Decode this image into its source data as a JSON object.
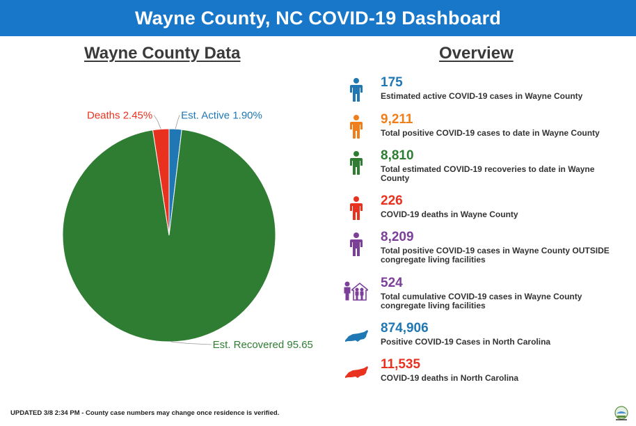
{
  "header": {
    "title": "Wayne County, NC COVID-19 Dashboard"
  },
  "left_section": {
    "title": "Wayne County Data"
  },
  "right_section": {
    "title": "Overview"
  },
  "chart_data": {
    "type": "pie",
    "title": "Wayne County Data",
    "slices": [
      {
        "label": "Est. Active",
        "value": 1.9,
        "text": "Est. Active 1.90%",
        "color": "#1f77b4"
      },
      {
        "label": "Est. Recovered",
        "value": 95.65,
        "text": "Est. Recovered 95.65",
        "color": "#2e7d32"
      },
      {
        "label": "Deaths",
        "value": 2.45,
        "text": "Deaths 2.45%",
        "color": "#e8321f"
      }
    ]
  },
  "stats": [
    {
      "value": "175",
      "label": "Estimated active COVID-19 cases in Wayne County",
      "color": "#1f77b4",
      "icon": "person-icon"
    },
    {
      "value": "9,211",
      "label": "Total positive COVID-19 cases to date in Wayne County",
      "color": "#f07f1b",
      "icon": "person-icon"
    },
    {
      "value": "8,810",
      "label": "Total estimated COVID-19 recoveries to date in Wayne County",
      "color": "#2e7d32",
      "icon": "person-icon"
    },
    {
      "value": "226",
      "label": "COVID-19 deaths in Wayne County",
      "color": "#e8321f",
      "icon": "person-icon"
    },
    {
      "value": "8,209",
      "label": "Total positive COVID-19 cases in Wayne County OUTSIDE congregate living facilities",
      "color": "#7b3f9a",
      "icon": "person-icon"
    },
    {
      "value": "524",
      "label": "Total cumulative COVID-19 cases in Wayne County congregate living facilities",
      "color": "#7b3f9a",
      "icon": "facility-icon"
    },
    {
      "value": "874,906",
      "label": "Positive COVID-19 Cases in North Carolina",
      "color": "#1f77b4",
      "icon": "nc-map-icon"
    },
    {
      "value": "11,535",
      "label": "COVID-19 deaths in North Carolina",
      "color": "#e8321f",
      "icon": "nc-map-icon"
    }
  ],
  "footer": {
    "note": "UPDATED 3/8 2:34 PM - County case numbers may change once residence is verified."
  }
}
